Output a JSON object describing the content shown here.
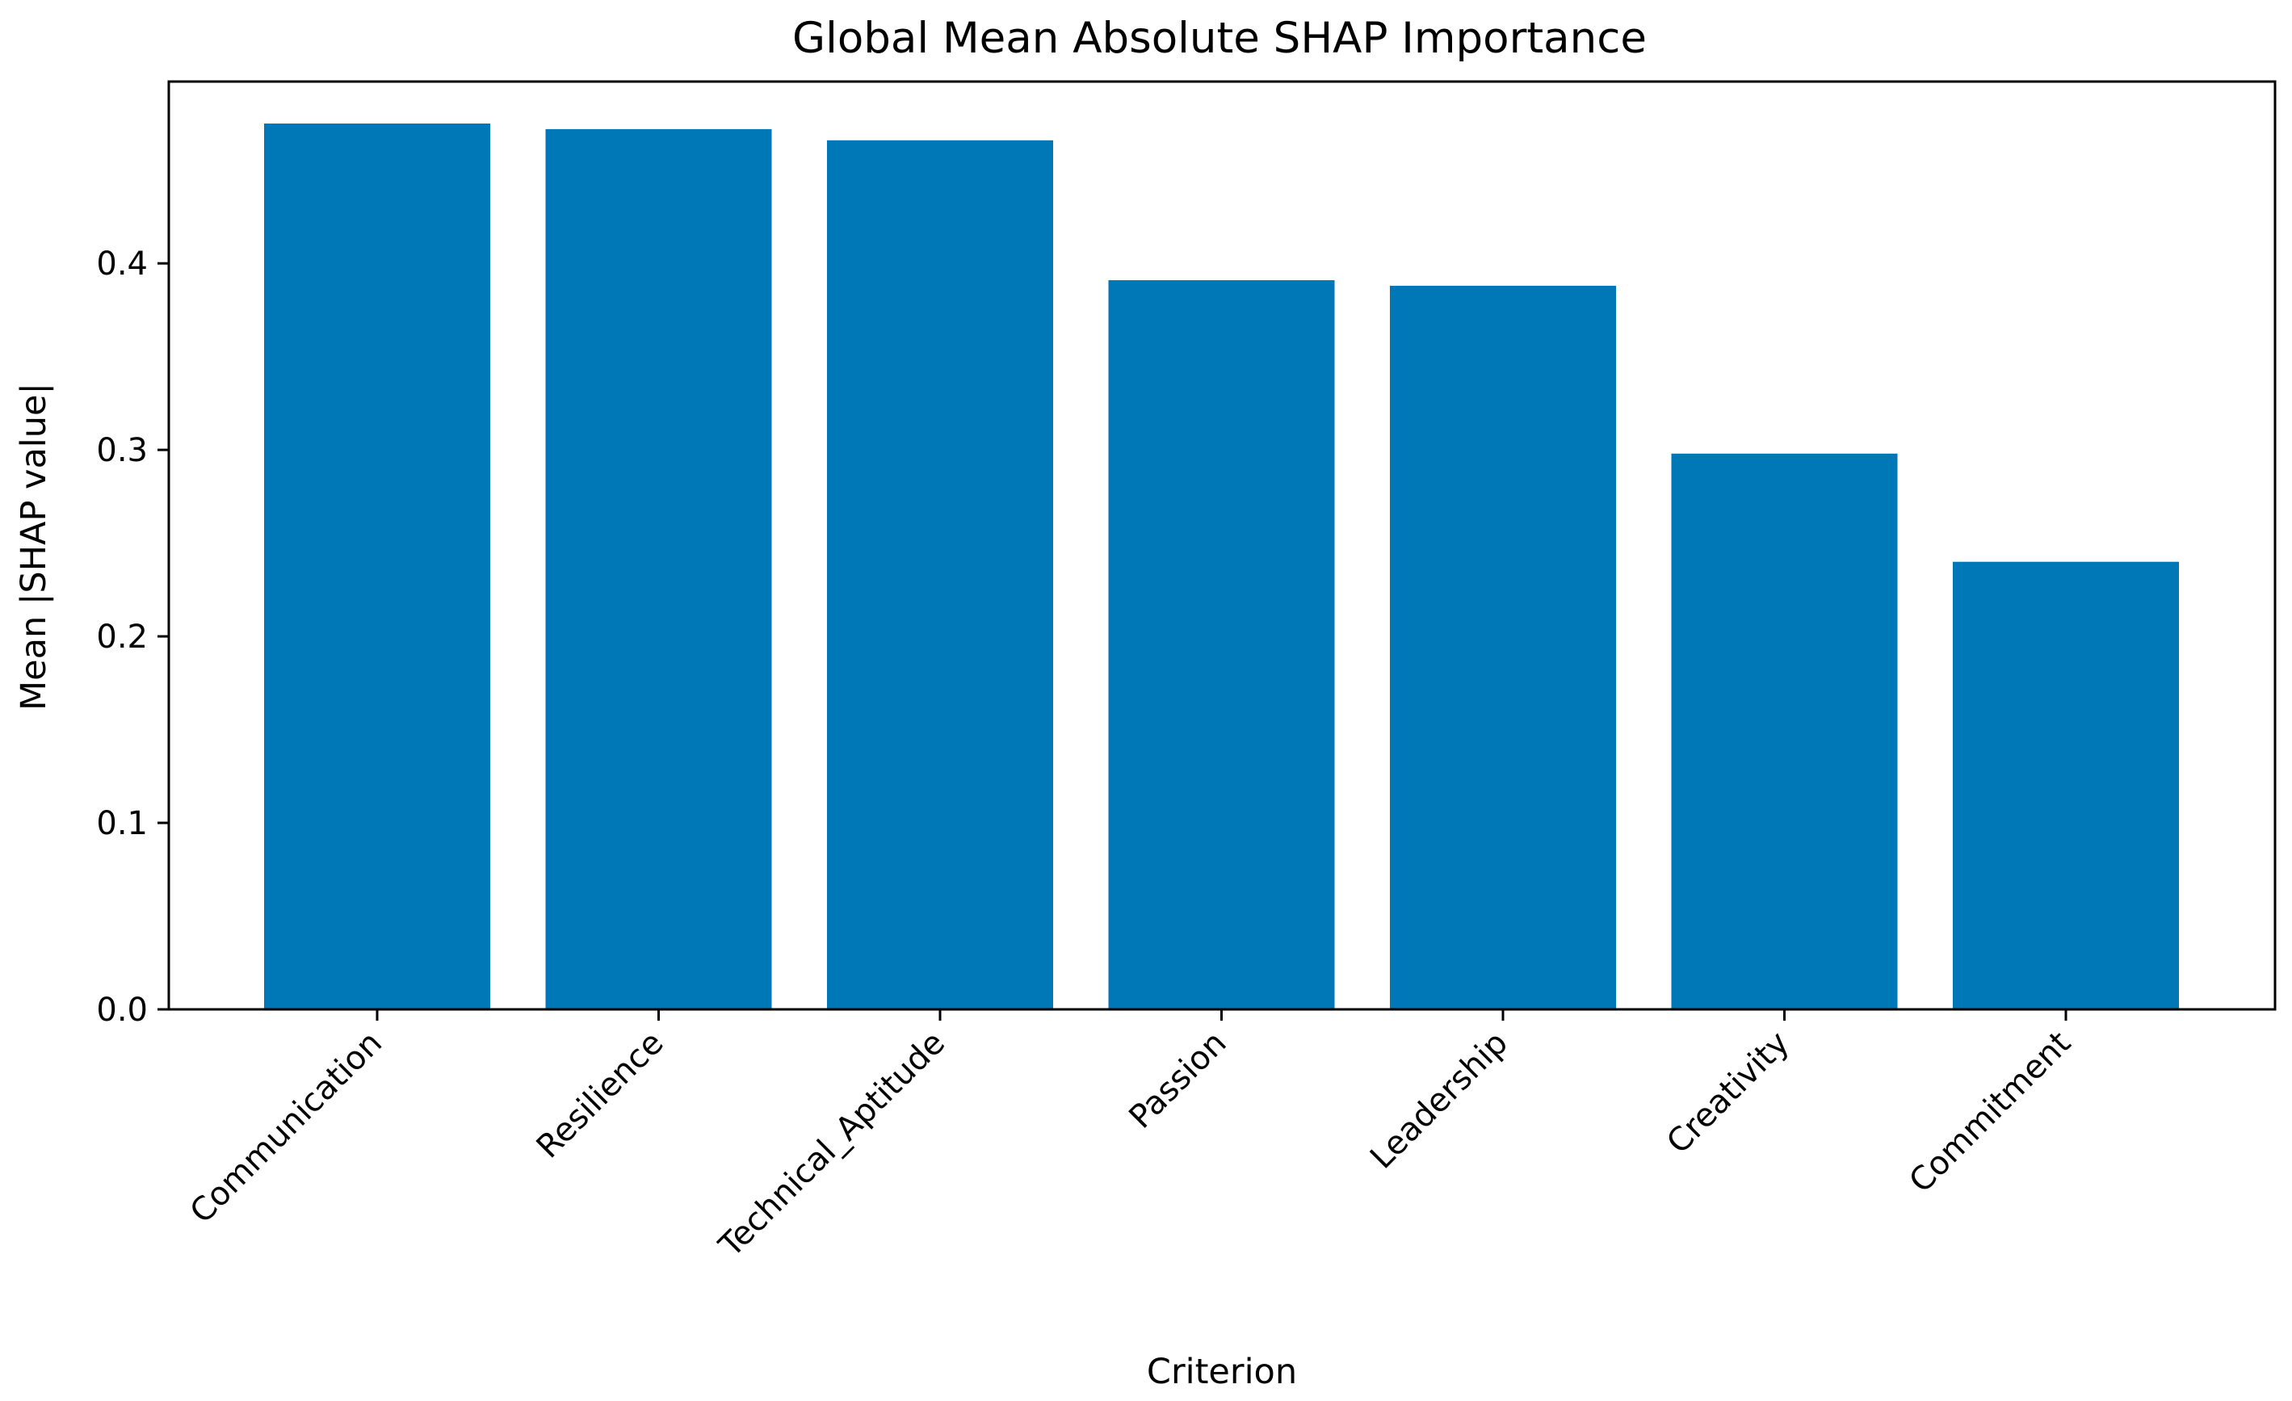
{
  "chart_data": {
    "type": "bar",
    "title": "Global Mean Absolute SHAP Importance",
    "xlabel": "Criterion",
    "ylabel": "Mean |SHAP value|",
    "categories": [
      "Communication",
      "Resilience",
      "Technical_Aptitude",
      "Passion",
      "Leadership",
      "Creativity",
      "Commitment"
    ],
    "values": [
      0.475,
      0.472,
      0.466,
      0.391,
      0.388,
      0.298,
      0.24
    ],
    "ylim": [
      0,
      0.4975
    ],
    "yticks": [
      0.0,
      0.1,
      0.2,
      0.3,
      0.4
    ],
    "ytick_labels": [
      "0.0",
      "0.1",
      "0.2",
      "0.3",
      "0.4"
    ],
    "bar_color": "#0077b6",
    "grid": false,
    "legend": "none"
  }
}
